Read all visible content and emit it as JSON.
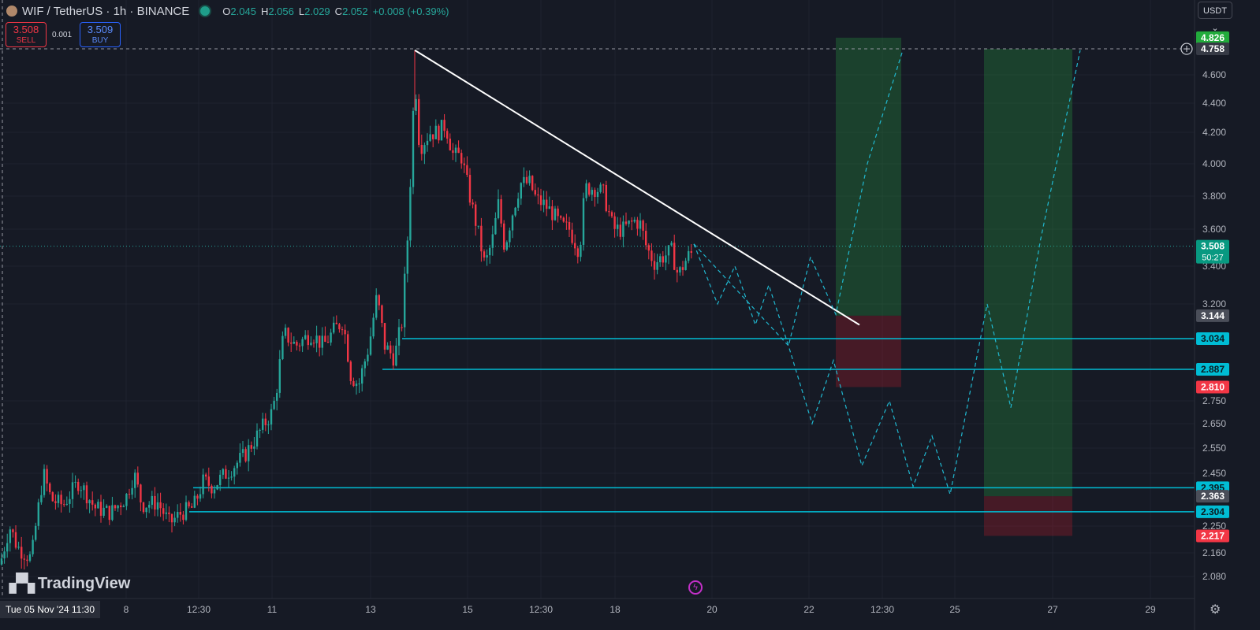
{
  "header": {
    "symbol": "WIF / TetherUS · 1h · BINANCE",
    "open_label": "O",
    "open": "2.045",
    "high_label": "H",
    "high": "2.056",
    "low_label": "L",
    "low": "2.029",
    "close_label": "C",
    "close": "2.052",
    "change": "+0.008 (+0.39%)"
  },
  "trade": {
    "sell_price": "3.508",
    "sell_label": "SELL",
    "spread": "0.001",
    "buy_price": "3.509",
    "buy_label": "BUY"
  },
  "currency_selector": "USDT ⌄",
  "branding": {
    "name": "TradingView"
  },
  "colors": {
    "up": "#26a69a",
    "down": "#f23645",
    "level": "#00bcd4",
    "bg": "#161a25"
  },
  "chart_data": {
    "type": "candlestick",
    "x_axis_labels": [
      "8",
      "12:30",
      "11",
      "13",
      "15",
      "12:30",
      "18",
      "20",
      "22",
      "12:30",
      "25",
      "27",
      "29"
    ],
    "current_date_label": "Tue 05 Nov '24  11:30",
    "y_axis_ticks": [
      "4.600",
      "4.400",
      "4.200",
      "4.000",
      "3.800",
      "3.600",
      "3.400",
      "3.200",
      "2.750",
      "2.650",
      "2.550",
      "2.450",
      "2.250",
      "2.160",
      "2.080"
    ],
    "ylim": [
      2.03,
      4.95
    ],
    "price_path": [
      [
        0,
        2.12
      ],
      [
        12,
        2.25
      ],
      [
        22,
        2.18
      ],
      [
        40,
        2.14
      ],
      [
        55,
        2.45
      ],
      [
        65,
        2.35
      ],
      [
        80,
        2.33
      ],
      [
        100,
        2.42
      ],
      [
        120,
        2.32
      ],
      [
        140,
        2.3
      ],
      [
        160,
        2.36
      ],
      [
        170,
        2.45
      ],
      [
        180,
        2.33
      ],
      [
        200,
        2.34
      ],
      [
        215,
        2.26
      ],
      [
        230,
        2.3
      ],
      [
        245,
        2.32
      ],
      [
        258,
        2.42
      ],
      [
        270,
        2.4
      ],
      [
        290,
        2.46
      ],
      [
        310,
        2.52
      ],
      [
        330,
        2.62
      ],
      [
        345,
        2.7
      ],
      [
        350,
        2.78
      ],
      [
        360,
        3.06
      ],
      [
        375,
        3.0
      ],
      [
        395,
        3.06
      ],
      [
        410,
        3.0
      ],
      [
        425,
        3.08
      ],
      [
        435,
        3.12
      ],
      [
        445,
        2.86
      ],
      [
        455,
        2.82
      ],
      [
        468,
        3.0
      ],
      [
        478,
        3.24
      ],
      [
        488,
        3.0
      ],
      [
        500,
        2.94
      ],
      [
        510,
        3.12
      ],
      [
        517,
        3.56
      ],
      [
        522,
        4.05
      ],
      [
        526,
        4.62
      ],
      [
        532,
        4.1
      ],
      [
        545,
        4.2
      ],
      [
        555,
        4.2
      ],
      [
        565,
        4.25
      ],
      [
        575,
        4.05
      ],
      [
        585,
        4.05
      ],
      [
        598,
        3.75
      ],
      [
        608,
        3.55
      ],
      [
        615,
        3.4
      ],
      [
        625,
        3.55
      ],
      [
        632,
        3.75
      ],
      [
        640,
        3.5
      ],
      [
        650,
        3.7
      ],
      [
        660,
        3.88
      ],
      [
        672,
        3.88
      ],
      [
        680,
        3.78
      ],
      [
        690,
        3.75
      ],
      [
        700,
        3.7
      ],
      [
        712,
        3.62
      ],
      [
        722,
        3.6
      ],
      [
        735,
        3.48
      ],
      [
        742,
        3.85
      ],
      [
        755,
        3.85
      ],
      [
        765,
        3.82
      ],
      [
        778,
        3.6
      ],
      [
        790,
        3.6
      ],
      [
        805,
        3.65
      ],
      [
        812,
        3.63
      ],
      [
        820,
        3.5
      ],
      [
        830,
        3.42
      ],
      [
        840,
        3.45
      ],
      [
        852,
        3.48
      ],
      [
        860,
        3.35
      ],
      [
        872,
        3.45
      ],
      [
        880,
        3.48
      ]
    ],
    "trendline": {
      "from": [
        526,
        4.75
      ],
      "to": [
        1090,
        3.1
      ]
    },
    "projection_path_1": [
      [
        880,
        3.52
      ],
      [
        910,
        3.2
      ],
      [
        932,
        3.4
      ],
      [
        958,
        3.1
      ],
      [
        975,
        3.3
      ],
      [
        1000,
        3.0
      ],
      [
        1028,
        3.45
      ],
      [
        1060,
        3.15
      ],
      [
        1100,
        4.0
      ],
      [
        1145,
        4.75
      ]
    ],
    "projection_path_2": [
      [
        880,
        3.52
      ],
      [
        1000,
        3.0
      ],
      [
        1030,
        2.65
      ],
      [
        1057,
        2.93
      ],
      [
        1093,
        2.48
      ],
      [
        1128,
        2.75
      ],
      [
        1158,
        2.4
      ],
      [
        1182,
        2.6
      ],
      [
        1205,
        2.37
      ],
      [
        1252,
        3.2
      ],
      [
        1282,
        2.72
      ],
      [
        1320,
        3.55
      ],
      [
        1370,
        4.75
      ]
    ],
    "horizontal_levels": [
      {
        "price": 3.034,
        "label": "3.034",
        "from_x": 510
      },
      {
        "price": 2.887,
        "label": "2.887",
        "from_x": 485
      },
      {
        "price": 2.395,
        "label": "2.395",
        "from_x": 245
      },
      {
        "price": 2.304,
        "label": "2.304",
        "from_x": 240
      }
    ],
    "positions": [
      {
        "x_from": 1060,
        "x_to": 1143,
        "entry": 3.144,
        "target": 4.826,
        "stop": 2.81,
        "entry_label": "3.144",
        "target_label": "4.826",
        "stop_label": "2.810"
      },
      {
        "x_from": 1248,
        "x_to": 1360,
        "entry": 2.363,
        "target": 4.758,
        "stop": 2.217,
        "entry_label": "2.363",
        "target_label": "4.758",
        "stop_label": "2.217"
      }
    ],
    "current_price": {
      "label": "3.508",
      "countdown": "50:27",
      "price": 3.508
    },
    "crosshair": {
      "label": "4.758",
      "price": 4.758
    }
  }
}
